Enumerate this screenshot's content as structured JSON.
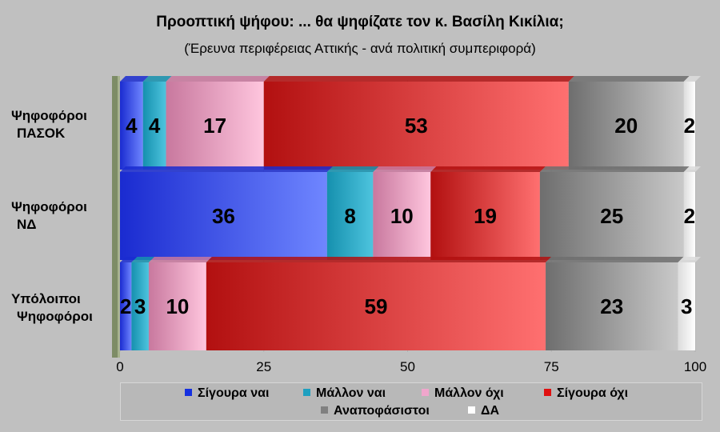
{
  "title": "Προοπτική ψήφου: ... θα ψηφίζατε τον κ. Βασίλη Κικίλια;",
  "subtitle": "(Έρευνα περιφέρειας Αττικής - ανά πολιτική συμπεριφορά)",
  "category_labels": [
    [
      "Ψηφοφόροι",
      "ΠΑΣΟΚ"
    ],
    [
      "Ψηφοφόροι",
      "ΝΔ"
    ],
    [
      "Υπόλοιποι",
      "Ψηφοφόροι"
    ]
  ],
  "legend": [
    "Σίγουρα ναι",
    "Μάλλον ναι",
    "Μάλλον όχι",
    "Σίγουρα όχι",
    "Αναποφάσιστοι",
    "ΔΑ"
  ],
  "chart_data": {
    "type": "bar",
    "orientation": "horizontal",
    "stacked": true,
    "title": "Προοπτική ψήφου: ... θα ψηφίζατε τον κ. Βασίλη Κικίλια;",
    "subtitle": "(Έρευνα περιφέρειας Αττικής - ανά πολιτική συμπεριφορά)",
    "categories": [
      "Ψηφοφόροι ΠΑΣΟΚ",
      "Ψηφοφόροι ΝΔ",
      "Υπόλοιποι Ψηφοφόροι"
    ],
    "series": [
      {
        "name": "Σίγουρα ναι",
        "values": [
          4,
          36,
          2
        ],
        "color": "#2a3fd8"
      },
      {
        "name": "Μάλλον ναι",
        "values": [
          4,
          8,
          3
        ],
        "color": "#1fa0c0"
      },
      {
        "name": "Μάλλον όχι",
        "values": [
          17,
          10,
          10
        ],
        "color": "#f0a6cc"
      },
      {
        "name": "Σίγουρα όχι",
        "values": [
          53,
          19,
          59
        ],
        "color": "#d81818"
      },
      {
        "name": "Αναποφάσιστοι",
        "values": [
          20,
          25,
          23
        ],
        "color": "#8a8a8a"
      },
      {
        "name": "ΔΑ",
        "values": [
          2,
          2,
          3
        ],
        "color": "#ffffff"
      }
    ],
    "xlim": [
      0,
      100
    ],
    "xticks": [
      0,
      25,
      50,
      75,
      100
    ],
    "grid": false,
    "legend_position": "bottom"
  }
}
